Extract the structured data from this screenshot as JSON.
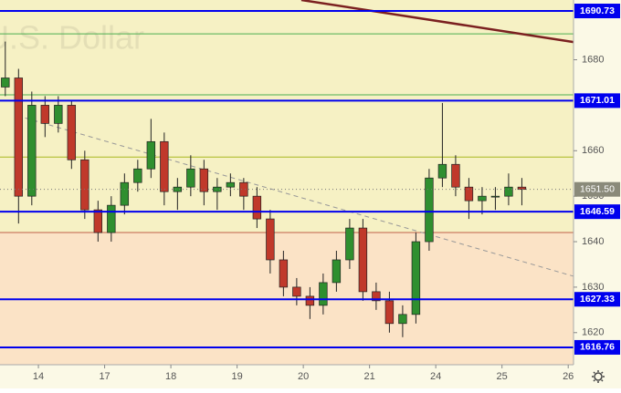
{
  "chart_data": {
    "type": "candlestick",
    "watermark": "U.S. Dollar",
    "x": [
      -0.5,
      -0.3,
      -0.1,
      0.1,
      0.3,
      0.5,
      0.7,
      0.9,
      1.1,
      1.3,
      1.5,
      1.7,
      1.9,
      2.1,
      2.3,
      2.5,
      2.7,
      2.9,
      3.1,
      3.3,
      3.5,
      3.7,
      3.9,
      4.1,
      4.3,
      4.5,
      4.7,
      4.9,
      5.1,
      5.3,
      5.5,
      5.7,
      5.9,
      6.1,
      6.3,
      6.5,
      6.7,
      6.9,
      7.1,
      7.3
    ],
    "ohlc": [
      [
        1674,
        1684,
        1672,
        1676
      ],
      [
        1676,
        1678,
        1644,
        1650
      ],
      [
        1650,
        1673,
        1648,
        1670
      ],
      [
        1670,
        1672,
        1663,
        1666
      ],
      [
        1666,
        1672,
        1664,
        1670
      ],
      [
        1670,
        1671,
        1656,
        1658
      ],
      [
        1658,
        1660,
        1645,
        1647
      ],
      [
        1647,
        1649,
        1640,
        1642
      ],
      [
        1642,
        1650,
        1640,
        1648
      ],
      [
        1648,
        1655,
        1646,
        1653
      ],
      [
        1653,
        1658,
        1651,
        1656
      ],
      [
        1656,
        1667,
        1654,
        1662
      ],
      [
        1662,
        1664,
        1648,
        1651
      ],
      [
        1651,
        1654,
        1647,
        1652
      ],
      [
        1652,
        1659,
        1650,
        1656
      ],
      [
        1656,
        1658,
        1648,
        1651
      ],
      [
        1651,
        1654,
        1647,
        1652
      ],
      [
        1652,
        1655,
        1650,
        1653
      ],
      [
        1653,
        1654,
        1647,
        1650
      ],
      [
        1650,
        1652,
        1643,
        1645
      ],
      [
        1645,
        1647,
        1633,
        1636
      ],
      [
        1636,
        1638,
        1628,
        1630
      ],
      [
        1630,
        1632,
        1626,
        1628
      ],
      [
        1628,
        1630,
        1623,
        1626
      ],
      [
        1626,
        1633,
        1624,
        1631
      ],
      [
        1631,
        1638,
        1629,
        1636
      ],
      [
        1636,
        1645,
        1634,
        1643
      ],
      [
        1643,
        1645,
        1627,
        1629
      ],
      [
        1629,
        1631,
        1625,
        1627
      ],
      [
        1627,
        1629,
        1620,
        1622
      ],
      [
        1622,
        1626,
        1619,
        1624
      ],
      [
        1624,
        1642,
        1622,
        1640
      ],
      [
        1640,
        1656,
        1638,
        1654
      ],
      [
        1654,
        1670.5,
        1652,
        1657
      ],
      [
        1657,
        1659,
        1650,
        1652
      ],
      [
        1652,
        1654,
        1645,
        1649
      ],
      [
        1649,
        1652,
        1646,
        1650
      ],
      [
        1650,
        1652,
        1647,
        1650
      ],
      [
        1650,
        1655,
        1648,
        1652
      ],
      [
        1652,
        1654,
        1648,
        1651.5
      ]
    ],
    "up_color": "#2f8f2f",
    "down_color": "#c0392b",
    "xlim": [
      -0.58,
      8.08
    ],
    "ylim": [
      1612.94,
      1693.14
    ],
    "xticks": [
      {
        "value": 0,
        "label": "14"
      },
      {
        "value": 1,
        "label": "17"
      },
      {
        "value": 2,
        "label": "18"
      },
      {
        "value": 3,
        "label": "19"
      },
      {
        "value": 4,
        "label": "20"
      },
      {
        "value": 5,
        "label": "21"
      },
      {
        "value": 6,
        "label": "24"
      },
      {
        "value": 7,
        "label": "25"
      },
      {
        "value": 8,
        "label": "26"
      }
    ],
    "yticks": [
      1620,
      1630,
      1640,
      1650,
      1660,
      1680
    ],
    "price_levels": [
      1690.73,
      1671.01,
      1646.59,
      1627.33,
      1616.76
    ],
    "level_color": "#0000ee",
    "last_price": {
      "value": 1651.5,
      "label": "1651.50"
    },
    "green_lines": [
      1685.7,
      1672.3
    ],
    "olive_line": 1658.6,
    "zone_boundary": 1642,
    "trend_lines": [
      {
        "x": [
          -0.2,
          8.08
        ],
        "y": [
          1667.2,
          1632.4
        ],
        "color": "#999999",
        "dashed": true
      },
      {
        "x": [
          3.97,
          8.08
        ],
        "y": [
          1693.14,
          1683.9
        ],
        "color": "#7b2020",
        "dashed": false
      }
    ]
  }
}
